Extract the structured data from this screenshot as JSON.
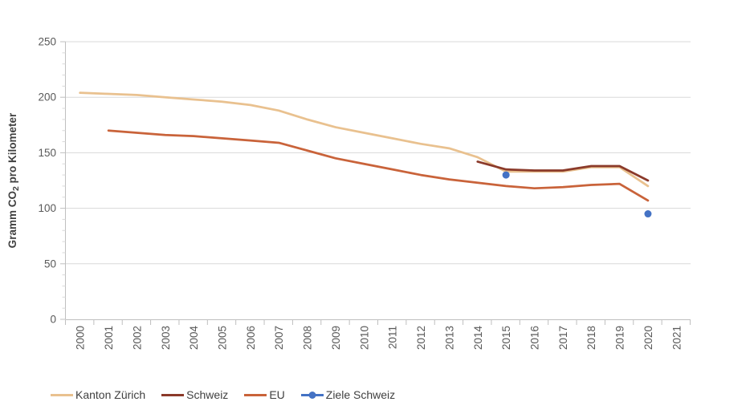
{
  "page": {
    "background": "#ffffff"
  },
  "colors": {
    "gridline": "#d9d9d9",
    "axis_line": "#bfbfbf",
    "minor_tick": "#d9d9d9",
    "tick_label_text": "#595959",
    "axis_title_text": "#404040",
    "legend_text": "#404040"
  },
  "chart_data": {
    "type": "line",
    "title": "",
    "xlabel": "",
    "ylabel": "Gramm CO2 pro Kilometer",
    "ylabel_parts": {
      "pre": "Gramm CO",
      "sub": "2",
      "post": " pro Kilometer"
    },
    "ylim": [
      0,
      250
    ],
    "y_major_ticks": [
      0,
      50,
      100,
      150,
      200,
      250
    ],
    "y_minor_unit": 10,
    "grid": "horizontal-major",
    "legend_position": "bottom",
    "x_categories": [
      2000,
      2001,
      2002,
      2003,
      2004,
      2005,
      2006,
      2007,
      2008,
      2009,
      2010,
      2011,
      2012,
      2013,
      2014,
      2015,
      2016,
      2017,
      2018,
      2019,
      2020,
      2021
    ],
    "series": [
      {
        "name": "Kanton Zürich",
        "color": "#e9c18f",
        "type": "line",
        "x": [
          2000,
          2001,
          2002,
          2003,
          2004,
          2005,
          2006,
          2007,
          2008,
          2009,
          2010,
          2011,
          2012,
          2013,
          2014,
          2015,
          2016,
          2017,
          2018,
          2019,
          2020
        ],
        "values": [
          204,
          203,
          202,
          200,
          198,
          196,
          193,
          188,
          180,
          173,
          168,
          163,
          158,
          154,
          146,
          133,
          133,
          133,
          137,
          137,
          120
        ]
      },
      {
        "name": "Schweiz",
        "color": "#8b3a2a",
        "type": "line",
        "x": [
          2014,
          2015,
          2016,
          2017,
          2018,
          2019,
          2020
        ],
        "values": [
          142,
          135,
          134,
          134,
          138,
          138,
          125
        ]
      },
      {
        "name": "EU",
        "color": "#c9633a",
        "type": "line",
        "x": [
          2001,
          2002,
          2003,
          2004,
          2005,
          2006,
          2007,
          2008,
          2009,
          2010,
          2011,
          2012,
          2013,
          2014,
          2015,
          2016,
          2017,
          2018,
          2019,
          2020
        ],
        "values": [
          170,
          168,
          166,
          165,
          163,
          161,
          159,
          152,
          145,
          140,
          135,
          130,
          126,
          123,
          120,
          118,
          119,
          121,
          122,
          107
        ]
      },
      {
        "name": "Ziele Schweiz",
        "color": "#4472c4",
        "type": "scatter",
        "x": [
          2015,
          2020
        ],
        "values": [
          130,
          95
        ]
      }
    ]
  }
}
